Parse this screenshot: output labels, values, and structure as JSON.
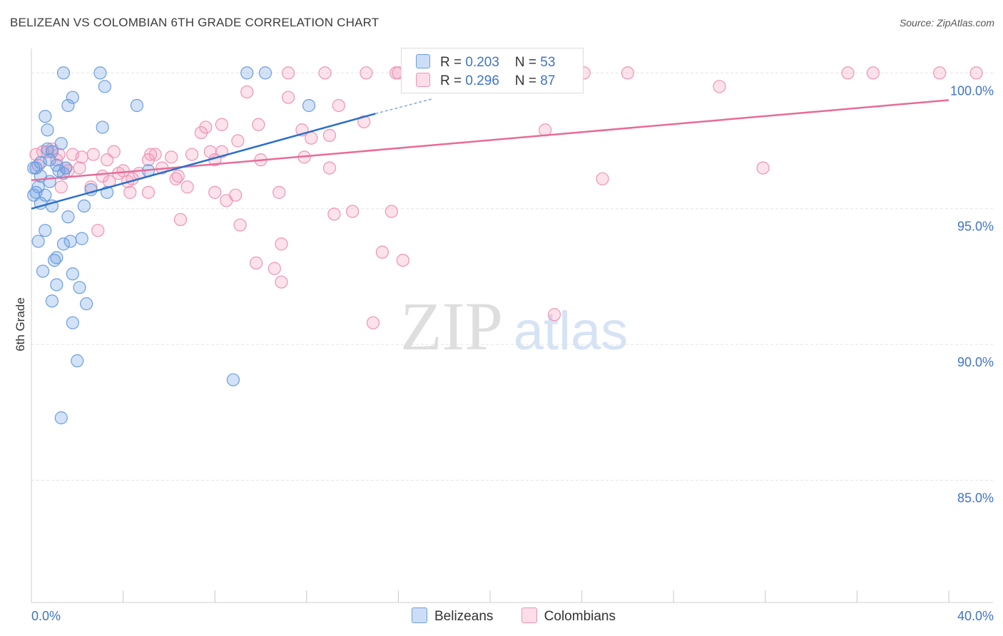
{
  "header": {
    "title": "BELIZEAN VS COLOMBIAN 6TH GRADE CORRELATION CHART",
    "source": "Source: ZipAtlas.com"
  },
  "legend": {
    "belizeans": {
      "r_label": "R = ",
      "r_value": "0.203",
      "n_label": "N = ",
      "n_value": "53"
    },
    "colombians": {
      "r_label": "R = ",
      "r_value": "0.296",
      "n_label": "N = ",
      "n_value": "87"
    }
  },
  "bottom_legend": {
    "belizeans": "Belizeans",
    "colombians": "Colombians"
  },
  "watermark": {
    "zip": "ZIP",
    "atlas": "atlas"
  },
  "colors": {
    "blue_fill": "rgba(110,160,230,0.30)",
    "blue_stroke": "#6b9ee0",
    "blue_line": "#2a6fcc",
    "pink_fill": "rgba(245,160,190,0.30)",
    "pink_stroke": "#ef93b4",
    "pink_line": "#e86b98",
    "tick_label": "#3f73c8",
    "grid": "#e4e4e4"
  },
  "chart_data": {
    "type": "scatter",
    "title": "BELIZEAN VS COLOMBIAN 6TH GRADE CORRELATION CHART",
    "xlabel": "",
    "ylabel": "6th Grade",
    "xlim": [
      0,
      40
    ],
    "ylim": [
      80.5,
      100.9
    ],
    "x_tick_labels": [
      "0.0%",
      "40.0%"
    ],
    "y_ticks": [
      85,
      90,
      95,
      100
    ],
    "y_tick_labels": [
      "85.0%",
      "90.0%",
      "95.0%",
      "100.0%"
    ],
    "series": [
      {
        "name": "Belizeans",
        "R": 0.203,
        "N": 53,
        "trend": {
          "x": [
            0,
            15
          ],
          "y": [
            95.0,
            98.5
          ]
        },
        "trend_dashed": {
          "x": [
            15,
            17.5
          ],
          "y": [
            98.5,
            99.05
          ]
        },
        "points": [
          [
            1.4,
            100
          ],
          [
            3.0,
            100
          ],
          [
            9.4,
            100
          ],
          [
            10.2,
            100
          ],
          [
            3.2,
            99.5
          ],
          [
            1.8,
            99.1
          ],
          [
            1.6,
            98.8
          ],
          [
            4.6,
            98.8
          ],
          [
            12.1,
            98.8
          ],
          [
            0.6,
            98.4
          ],
          [
            3.1,
            98.0
          ],
          [
            0.7,
            97.9
          ],
          [
            1.3,
            97.4
          ],
          [
            0.7,
            97.2
          ],
          [
            0.9,
            97.1
          ],
          [
            1.5,
            96.5
          ],
          [
            0.8,
            96.8
          ],
          [
            1.1,
            96.6
          ],
          [
            0.2,
            96.5
          ],
          [
            0.4,
            96.2
          ],
          [
            1.4,
            96.3
          ],
          [
            5.1,
            96.4
          ],
          [
            0.8,
            96.0
          ],
          [
            0.3,
            95.8
          ],
          [
            2.6,
            95.7
          ],
          [
            3.3,
            95.6
          ],
          [
            0.1,
            95.5
          ],
          [
            0.6,
            95.5
          ],
          [
            0.4,
            95.2
          ],
          [
            0.9,
            95.1
          ],
          [
            2.3,
            95.1
          ],
          [
            1.6,
            94.7
          ],
          [
            0.6,
            94.2
          ],
          [
            0.3,
            93.8
          ],
          [
            1.7,
            93.8
          ],
          [
            2.2,
            93.9
          ],
          [
            1.4,
            93.7
          ],
          [
            1.1,
            93.2
          ],
          [
            1.0,
            93.1
          ],
          [
            0.5,
            92.7
          ],
          [
            1.8,
            92.6
          ],
          [
            1.1,
            92.2
          ],
          [
            2.1,
            92.1
          ],
          [
            0.9,
            91.6
          ],
          [
            2.4,
            91.5
          ],
          [
            1.8,
            90.8
          ],
          [
            2.0,
            89.4
          ],
          [
            8.8,
            88.7
          ],
          [
            1.3,
            87.3
          ],
          [
            0.1,
            96.5
          ],
          [
            0.4,
            96.7
          ],
          [
            1.2,
            96.4
          ],
          [
            0.2,
            95.6
          ]
        ]
      },
      {
        "name": "Colombians",
        "R": 0.296,
        "N": 87,
        "trend": {
          "x": [
            0,
            40
          ],
          "y": [
            96.05,
            99.0
          ]
        },
        "points": [
          [
            11.2,
            100
          ],
          [
            12.8,
            100
          ],
          [
            14.6,
            100
          ],
          [
            15.9,
            100
          ],
          [
            18.2,
            100
          ],
          [
            24.1,
            100
          ],
          [
            26.0,
            100
          ],
          [
            35.6,
            100
          ],
          [
            36.7,
            100
          ],
          [
            41.2,
            100
          ],
          [
            39.6,
            100
          ],
          [
            9.4,
            99.3
          ],
          [
            11.2,
            99.1
          ],
          [
            30.0,
            99.5
          ],
          [
            13.4,
            98.8
          ],
          [
            14.5,
            98.2
          ],
          [
            9.9,
            98.1
          ],
          [
            8.3,
            98.1
          ],
          [
            7.6,
            98.0
          ],
          [
            7.4,
            97.8
          ],
          [
            11.8,
            97.9
          ],
          [
            12.2,
            97.6
          ],
          [
            13.0,
            97.7
          ],
          [
            22.4,
            97.9
          ],
          [
            16.0,
            100
          ],
          [
            9.0,
            97.5
          ],
          [
            3.6,
            97.1
          ],
          [
            7.8,
            97.1
          ],
          [
            5.2,
            97.0
          ],
          [
            5.4,
            97.0
          ],
          [
            8.3,
            97.1
          ],
          [
            7.0,
            97.0
          ],
          [
            1.8,
            97.0
          ],
          [
            2.2,
            96.9
          ],
          [
            2.7,
            97.0
          ],
          [
            3.3,
            96.8
          ],
          [
            6.1,
            96.9
          ],
          [
            10.0,
            96.8
          ],
          [
            11.9,
            96.9
          ],
          [
            8.0,
            96.8
          ],
          [
            5.1,
            96.8
          ],
          [
            0.9,
            97.2
          ],
          [
            1.2,
            97.0
          ],
          [
            0.7,
            97.1
          ],
          [
            1.1,
            96.8
          ],
          [
            1.6,
            96.4
          ],
          [
            2.1,
            96.5
          ],
          [
            4.0,
            96.4
          ],
          [
            4.7,
            96.3
          ],
          [
            5.7,
            96.5
          ],
          [
            6.3,
            96.1
          ],
          [
            6.4,
            96.2
          ],
          [
            3.1,
            96.2
          ],
          [
            3.4,
            96.0
          ],
          [
            4.2,
            96.0
          ],
          [
            4.4,
            96.1
          ],
          [
            13.0,
            96.5
          ],
          [
            31.9,
            96.5
          ],
          [
            24.9,
            96.1
          ],
          [
            1.3,
            95.8
          ],
          [
            2.6,
            95.8
          ],
          [
            4.3,
            95.6
          ],
          [
            5.1,
            95.6
          ],
          [
            6.8,
            95.8
          ],
          [
            8.0,
            95.6
          ],
          [
            8.5,
            95.3
          ],
          [
            8.9,
            95.5
          ],
          [
            10.8,
            95.6
          ],
          [
            13.2,
            94.8
          ],
          [
            14.0,
            94.9
          ],
          [
            15.7,
            94.9
          ],
          [
            6.5,
            94.6
          ],
          [
            9.1,
            94.4
          ],
          [
            2.9,
            94.2
          ],
          [
            10.9,
            93.7
          ],
          [
            15.3,
            93.4
          ],
          [
            16.2,
            93.1
          ],
          [
            9.8,
            93.0
          ],
          [
            10.6,
            92.8
          ],
          [
            10.9,
            92.3
          ],
          [
            14.9,
            90.8
          ],
          [
            22.8,
            91.1
          ],
          [
            0.2,
            97.0
          ],
          [
            0.5,
            97.1
          ],
          [
            0.3,
            96.6
          ],
          [
            1.5,
            96.5
          ],
          [
            3.8,
            96.3
          ]
        ]
      }
    ]
  }
}
